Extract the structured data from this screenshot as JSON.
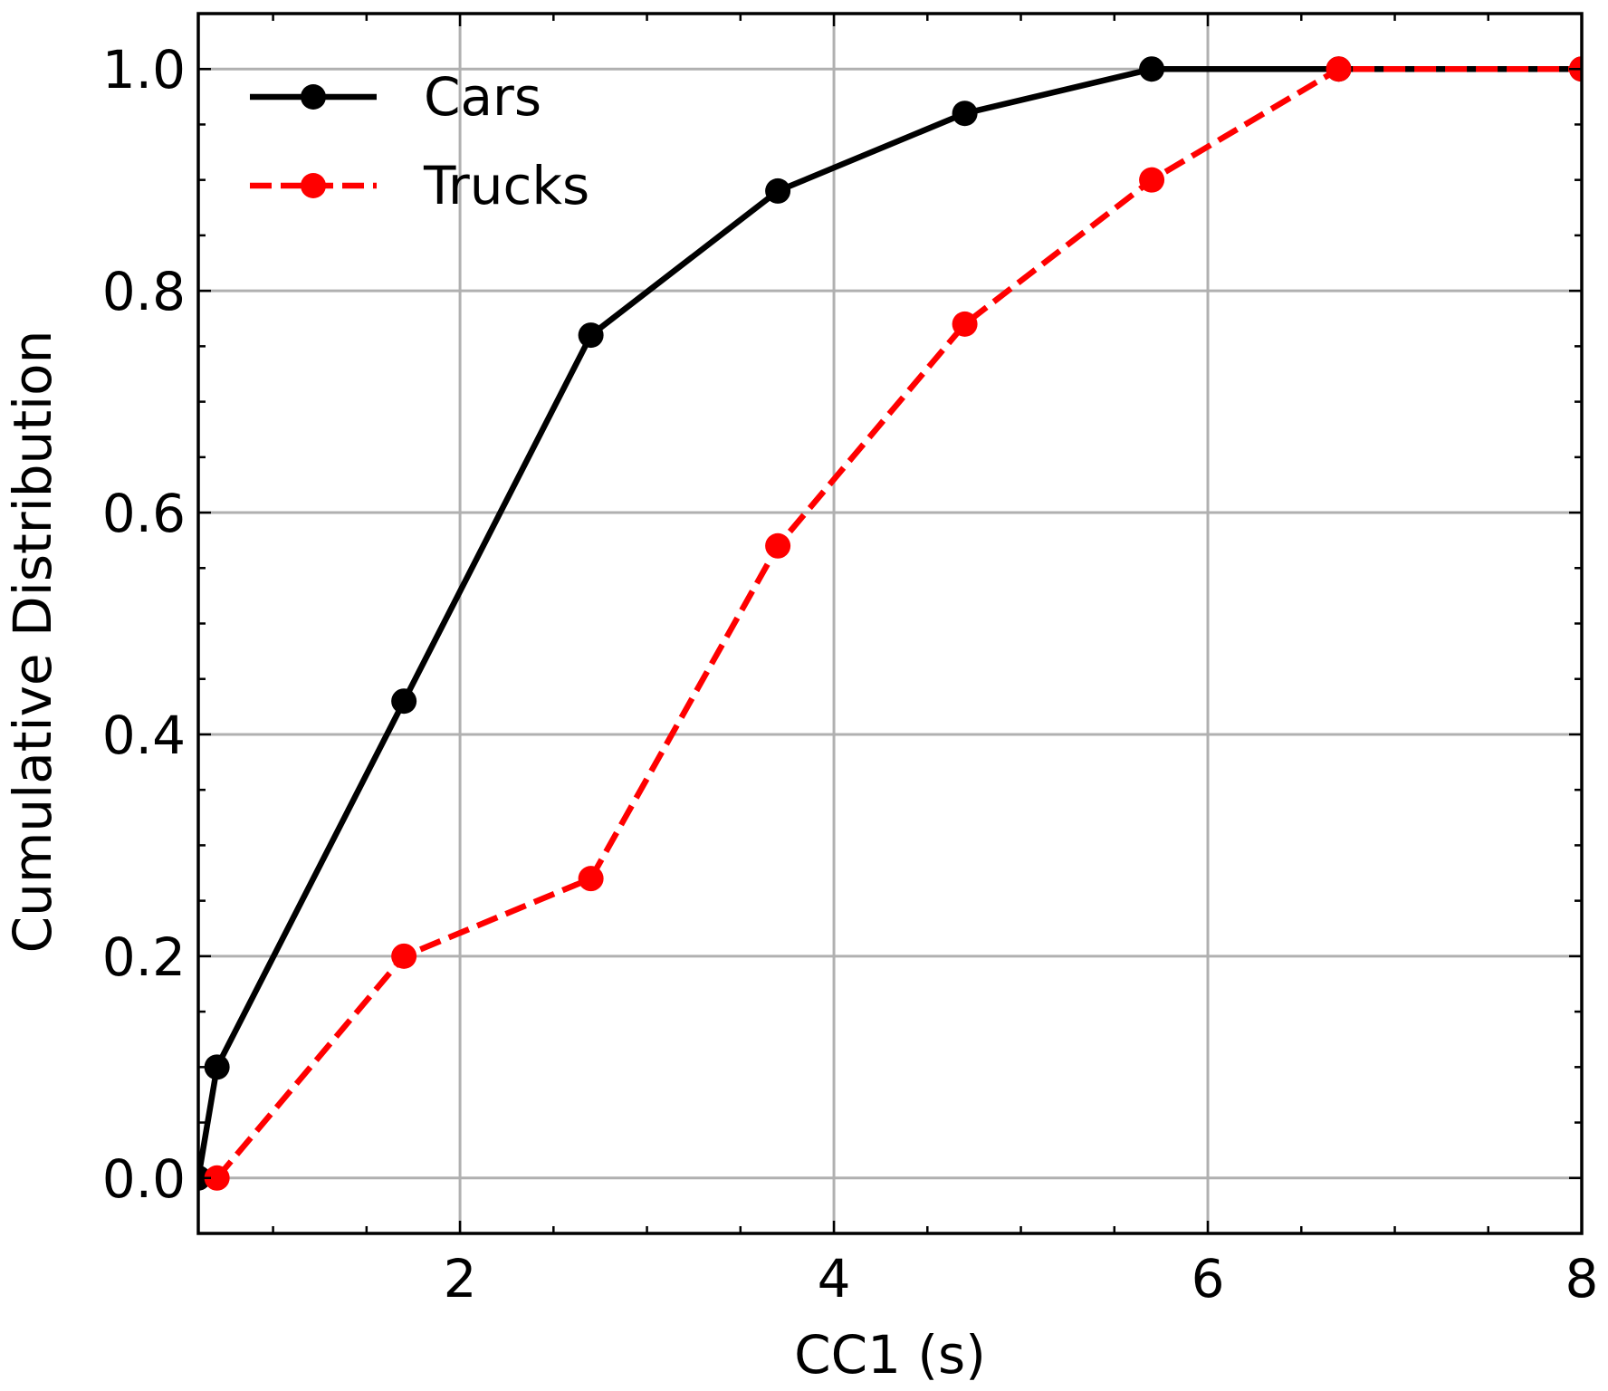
{
  "chart_data": {
    "type": "line",
    "title": "",
    "xlabel": "CC1 (s)",
    "ylabel": "Cumulative Distribution",
    "xlim": [
      0.6,
      8
    ],
    "ylim": [
      -0.05,
      1.05
    ],
    "x_ticks": [
      2,
      4,
      6,
      8
    ],
    "x_tick_labels": [
      "2",
      "4",
      "6",
      "8"
    ],
    "x_minor_ticks": [
      1,
      1.5,
      2.5,
      3,
      3.5,
      4.5,
      5,
      5.5,
      6.5,
      7,
      7.5
    ],
    "y_ticks": [
      0.0,
      0.2,
      0.4,
      0.6,
      0.8,
      1.0
    ],
    "y_tick_labels": [
      "0.0",
      "0.2",
      "0.4",
      "0.6",
      "0.8",
      "1.0"
    ],
    "y_minor_ticks": [
      0.05,
      0.1,
      0.15,
      0.25,
      0.3,
      0.35,
      0.45,
      0.5,
      0.55,
      0.65,
      0.7,
      0.75,
      0.85,
      0.9,
      0.95
    ],
    "grid": true,
    "legend_position": "top-left",
    "series": [
      {
        "name": "Cars",
        "color": "#000000",
        "line_style": "solid",
        "marker": "circle",
        "x": [
          0.6,
          0.7,
          1.7,
          2.7,
          3.7,
          4.7,
          5.7,
          6.7,
          8.0
        ],
        "y": [
          0.0,
          0.1,
          0.43,
          0.76,
          0.89,
          0.96,
          1.0,
          1.0,
          1.0
        ]
      },
      {
        "name": "Trucks",
        "color": "#ff0000",
        "line_style": "dashed",
        "marker": "circle",
        "x": [
          0.7,
          1.7,
          2.7,
          3.7,
          4.7,
          5.7,
          6.7,
          8.0
        ],
        "y": [
          0.0,
          0.2,
          0.27,
          0.57,
          0.77,
          0.9,
          1.0,
          1.0
        ]
      }
    ]
  }
}
